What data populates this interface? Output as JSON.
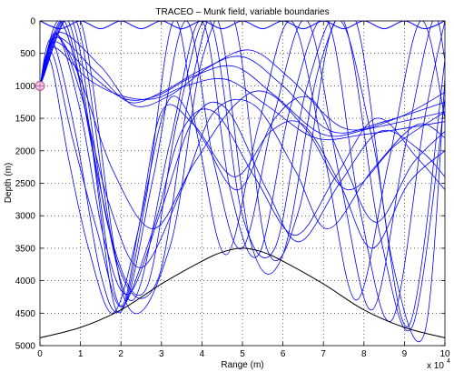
{
  "chart_data": {
    "type": "line",
    "title": "TRACEO – Munk field, variable boundaries",
    "xlabel": "Range (m)",
    "ylabel": "Depth (m)",
    "x_exponent_label": "x 10",
    "x_exponent_power": "4",
    "xlim": [
      0,
      10
    ],
    "ylim": [
      0,
      5000
    ],
    "y_reversed": true,
    "grid": true,
    "xticks": [
      0,
      1,
      2,
      3,
      4,
      5,
      6,
      7,
      8,
      9,
      10
    ],
    "xtick_labels": [
      "0",
      "1",
      "2",
      "3",
      "4",
      "5",
      "6",
      "7",
      "8",
      "9",
      "10"
    ],
    "yticks": [
      0,
      500,
      1000,
      1500,
      2000,
      2500,
      3000,
      3500,
      4000,
      4500,
      5000
    ],
    "ytick_labels": [
      "0",
      "500",
      "1000",
      "1500",
      "2000",
      "2500",
      "3000",
      "3500",
      "4000",
      "4500",
      "5000"
    ],
    "source": {
      "range": 0,
      "depth": 1000
    },
    "surface": {
      "x": [
        0,
        0.5,
        1,
        1.5,
        2,
        2.5,
        3,
        3.5,
        4,
        4.5,
        5,
        5.5,
        6,
        6.5,
        7,
        7.5,
        8,
        8.5,
        9,
        9.5,
        10
      ],
      "y": [
        0,
        120,
        0,
        120,
        0,
        120,
        0,
        120,
        0,
        120,
        0,
        120,
        0,
        120,
        0,
        120,
        0,
        120,
        0,
        120,
        0
      ]
    },
    "bottom": {
      "x": [
        0,
        1,
        2,
        3,
        4,
        4.5,
        5,
        5.5,
        6,
        7,
        8,
        9,
        10
      ],
      "y": [
        4880,
        4720,
        4450,
        4050,
        3700,
        3560,
        3500,
        3560,
        3700,
        4050,
        4450,
        4720,
        4880
      ]
    },
    "rays": [
      {
        "x": [
          0,
          0.45,
          1.5,
          2.3,
          3.2,
          4.2,
          5.2,
          6.2,
          7.5,
          8.8,
          10
        ],
        "y": [
          1000,
          180,
          700,
          1300,
          1150,
          700,
          450,
          900,
          1650,
          1500,
          1100
        ]
      },
      {
        "x": [
          0,
          0.4,
          1.4,
          2.2,
          3.0,
          4.0,
          5.0,
          6.0,
          7.2,
          8.5,
          10
        ],
        "y": [
          1000,
          250,
          800,
          1250,
          1100,
          750,
          550,
          1000,
          1700,
          1550,
          1250
        ]
      },
      {
        "x": [
          0,
          0.35,
          1.3,
          2.1,
          2.9,
          3.8,
          4.8,
          5.8,
          7.0,
          8.2,
          10
        ],
        "y": [
          1000,
          320,
          850,
          1200,
          1150,
          850,
          700,
          1150,
          1750,
          1650,
          1400
        ]
      },
      {
        "x": [
          0,
          0.3,
          1.2,
          2.0,
          2.8,
          3.6,
          4.6,
          5.6,
          6.8,
          8.0,
          10
        ],
        "y": [
          1000,
          400,
          900,
          1150,
          1200,
          1000,
          900,
          1300,
          1800,
          1750,
          1550
        ]
      },
      {
        "x": [
          0,
          0.4,
          1.0,
          1.8,
          2.8,
          3.8,
          4.8,
          5.6,
          6.6,
          7.6,
          8.8,
          10
        ],
        "y": [
          1000,
          250,
          900,
          2300,
          3200,
          2200,
          1300,
          1100,
          1700,
          2600,
          1900,
          1400
        ]
      },
      {
        "x": [
          0,
          0.4,
          1.0,
          1.7,
          2.5,
          3.5,
          4.3,
          5.3,
          6.3,
          7.1,
          8.2,
          9.3,
          10
        ],
        "y": [
          1000,
          200,
          1100,
          2800,
          3800,
          2600,
          1400,
          1300,
          2300,
          3200,
          2300,
          1600,
          1800
        ]
      },
      {
        "x": [
          0,
          0.4,
          1.0,
          1.6,
          2.2,
          3.0,
          3.8,
          4.6,
          5.6,
          6.4,
          7.4,
          8.4,
          9.4,
          10
        ],
        "y": [
          1000,
          180,
          1400,
          3400,
          4200,
          2900,
          1500,
          1350,
          2600,
          3400,
          2500,
          1700,
          2000,
          2400
        ]
      },
      {
        "x": [
          0,
          0.3,
          0.9,
          1.5,
          2.0,
          2.8,
          3.5,
          4.3,
          5.3,
          6.3,
          7.3,
          8.3,
          9.3,
          10
        ],
        "y": [
          1000,
          300,
          1800,
          3900,
          4450,
          3200,
          1700,
          1400,
          2400,
          3300,
          2400,
          1500,
          2100,
          2600
        ]
      },
      {
        "x": [
          0,
          0.5,
          1.2,
          1.9,
          2.6,
          3.3,
          3.9,
          4.6,
          5.4,
          6.2,
          7.0,
          7.8,
          8.6,
          9.4,
          10
        ],
        "y": [
          1000,
          0,
          1600,
          4470,
          2800,
          0,
          1800,
          3600,
          1600,
          0,
          2000,
          4300,
          2200,
          0,
          1500
        ]
      },
      {
        "x": [
          0,
          0.6,
          1.3,
          2.0,
          2.8,
          3.6,
          4.3,
          5.0,
          5.8,
          6.6,
          7.4,
          8.2,
          9.0,
          9.7,
          10
        ],
        "y": [
          1000,
          0,
          2000,
          4400,
          2400,
          0,
          2200,
          3500,
          1400,
          0,
          2400,
          4450,
          2000,
          0,
          600
        ]
      },
      {
        "x": [
          0,
          0.7,
          1.5,
          2.3,
          3.2,
          4.0,
          4.7,
          5.4,
          6.2,
          7.1,
          7.9,
          8.7,
          9.5,
          10
        ],
        "y": [
          1000,
          0,
          2600,
          4300,
          1900,
          0,
          2600,
          3600,
          1300,
          0,
          2900,
          4600,
          1500,
          0
        ]
      },
      {
        "x": [
          0,
          0.8,
          1.7,
          2.6,
          3.4,
          4.2,
          5.0,
          5.8,
          6.6,
          7.5,
          8.4,
          9.2,
          10
        ],
        "y": [
          1000,
          0,
          3200,
          4150,
          1500,
          0,
          3000,
          3500,
          1000,
          0,
          3300,
          4700,
          1200
        ]
      },
      {
        "x": [
          0,
          0.9,
          1.9,
          2.9,
          3.7,
          4.4,
          5.2,
          6.0,
          6.9,
          7.8,
          8.7,
          9.5,
          10
        ],
        "y": [
          1000,
          0,
          3700,
          4000,
          1100,
          0,
          3400,
          3600,
          700,
          0,
          3700,
          4800,
          900
        ]
      },
      {
        "x": [
          0,
          1.0,
          2.1,
          3.2,
          4.0,
          4.8,
          5.6,
          6.4,
          7.3,
          8.2,
          9.1,
          10
        ],
        "y": [
          1000,
          0,
          4300,
          3500,
          600,
          0,
          3500,
          2900,
          0,
          1800,
          4700,
          600
        ]
      },
      {
        "x": [
          0,
          0.3,
          0.8,
          1.4,
          2.0,
          2.5,
          3.2,
          4.0,
          4.9,
          5.8,
          6.7,
          7.5,
          8.3,
          9.2,
          10
        ],
        "y": [
          1000,
          500,
          1800,
          3200,
          4400,
          3000,
          1200,
          1800,
          2600,
          1500,
          1200,
          2200,
          3100,
          2200,
          1700
        ]
      },
      {
        "x": [
          0,
          0.25,
          0.7,
          1.2,
          1.8,
          2.4,
          3.0,
          3.8,
          4.8,
          5.7,
          6.5,
          7.4,
          8.2,
          9.1,
          10
        ],
        "y": [
          1000,
          600,
          2100,
          3500,
          4500,
          3300,
          1400,
          1600,
          2400,
          1700,
          1600,
          2500,
          3500,
          2500,
          2000
        ]
      }
    ]
  }
}
